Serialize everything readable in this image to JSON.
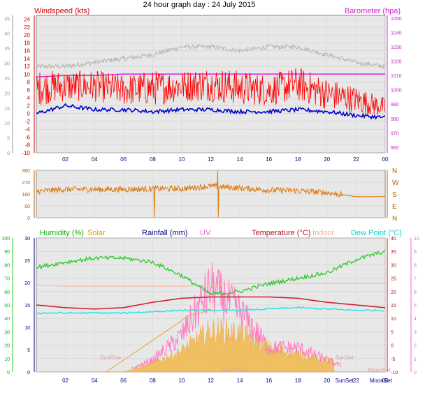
{
  "page_title": "24 hour graph day : 24 July 2015",
  "colors": {
    "wind": "#ff0000",
    "gust_low": "#0000cc",
    "gust_high": "#b4b4b4",
    "baro": "#dd22dd",
    "dir": "#dd7a10",
    "humidity": "#22cc22",
    "solar": "#f2b94a",
    "rain": "#000080",
    "uv": "#ff7ac0",
    "temp": "#cc2233",
    "indoor": "#f3c0a6",
    "dew": "#22e4e4",
    "grid": "#c8c8c8",
    "panel": "#e8e8e8"
  },
  "chart_data": [
    {
      "type": "line",
      "title": "24 hour graph day : 24 July 2015",
      "series_labels": {
        "left": "Windspeed (kts)",
        "right": "Barometer (hpa)"
      },
      "left_axis_kts": {
        "ticks": [
          -10,
          -8,
          -6,
          -4,
          -2,
          0,
          2,
          4,
          6,
          8,
          10,
          12,
          14,
          16,
          18,
          20,
          22,
          24
        ],
        "range": [
          -10,
          25
        ]
      },
      "outer_axis": {
        "ticks": [
          0,
          5,
          10,
          15,
          20,
          25,
          30,
          35,
          40,
          45
        ]
      },
      "right_axis_hpa": {
        "ticks": [
          960,
          970,
          980,
          990,
          1000,
          1010,
          1020,
          1030,
          1040,
          1050
        ],
        "range": [
          956,
          1052
        ]
      },
      "x_ticks": [
        "02",
        "04",
        "06",
        "08",
        "10",
        "12",
        "14",
        "16",
        "18",
        "20",
        "22",
        "00"
      ],
      "hours": [
        0,
        2,
        4,
        6,
        8,
        10,
        12,
        14,
        16,
        18,
        20,
        22,
        24
      ],
      "wind_avg_kts": [
        4,
        5,
        5,
        4,
        4,
        5,
        5,
        4,
        4,
        5,
        3,
        2,
        1
      ],
      "wind_gust_kts": [
        9,
        9,
        9,
        8,
        9,
        9,
        10,
        9,
        8,
        10,
        7,
        5,
        2
      ],
      "gust_low_kts": [
        0,
        2,
        1,
        1,
        0.5,
        1,
        1,
        0.5,
        0.5,
        1,
        0.5,
        -0.5,
        -1
      ],
      "gray_series_kts": [
        12,
        12,
        13,
        14,
        15,
        17,
        17,
        16,
        17,
        17,
        15,
        13,
        12
      ],
      "barometer_hpa": [
        1009,
        1010,
        1010,
        1011,
        1011,
        1011,
        1011,
        1011,
        1011,
        1011,
        1011,
        1011,
        1011
      ]
    },
    {
      "type": "line",
      "series_labels": {
        "compass": [
          "N",
          "W",
          "S",
          "E",
          "N"
        ]
      },
      "left_axis_deg": {
        "ticks": [
          0,
          90,
          180,
          270,
          360
        ],
        "range": [
          0,
          360
        ]
      },
      "hours": [
        0,
        2,
        4,
        6,
        8,
        10,
        12,
        14,
        16,
        18,
        20,
        22,
        24
      ],
      "wind_dir_deg": [
        200,
        215,
        215,
        215,
        220,
        220,
        240,
        225,
        210,
        205,
        190,
        160,
        160
      ]
    },
    {
      "type": "line",
      "labels": {
        "humidity": "Humidity (%)",
        "solar": "Solar",
        "rain": "Rainfall (mm)",
        "uv": "UV",
        "temp": "Temperature (°C)",
        "indoor": "Indoor",
        "dew": "Dew Point (°C)"
      },
      "humidity_axis": {
        "ticks": [
          0,
          10,
          20,
          30,
          40,
          50,
          60,
          70,
          80,
          90,
          100
        ],
        "range": [
          0,
          100
        ]
      },
      "rain_axis": {
        "ticks": [
          0,
          5,
          10,
          15,
          20,
          25,
          30
        ]
      },
      "temp_axis": {
        "ticks": [
          -10,
          -5,
          0,
          5,
          10,
          15,
          20,
          25,
          30,
          35,
          40
        ],
        "range": [
          -10,
          40
        ]
      },
      "uv_axis": {
        "ticks": [
          0,
          1,
          2,
          3,
          4,
          5,
          6,
          7,
          8,
          9,
          10
        ],
        "range": [
          0,
          10
        ]
      },
      "x_ticks": [
        "02",
        "04",
        "06",
        "08",
        "10",
        "12",
        "14",
        "16",
        "18",
        "20",
        "22",
        "00"
      ],
      "events": [
        "SunRise",
        "Moon Rise",
        "SunSet",
        "SunSet",
        "MoonSet",
        "MoonSet"
      ],
      "hours": [
        0,
        2,
        4,
        6,
        8,
        10,
        12,
        14,
        16,
        18,
        20,
        22,
        24
      ],
      "humidity_pct": [
        78,
        82,
        85,
        85,
        82,
        72,
        58,
        60,
        66,
        70,
        74,
        84,
        90
      ],
      "temp_c": [
        15,
        14,
        13.5,
        14,
        16,
        17.5,
        18,
        18,
        18,
        17.5,
        16,
        15,
        14
      ],
      "dew_c": [
        12,
        12,
        12,
        12,
        12.5,
        13,
        13,
        13,
        13.5,
        14,
        13.5,
        13,
        13
      ],
      "indoor_c": [
        22.5,
        22,
        22,
        22,
        22,
        22,
        22.5,
        23,
        23,
        23,
        23,
        23,
        23
      ],
      "solar_rel": [
        0,
        0,
        0,
        0,
        3,
        7,
        14,
        13,
        8,
        6,
        4,
        2,
        0
      ],
      "uv_index": [
        0,
        0,
        0,
        0,
        1,
        3,
        7,
        5,
        2,
        2,
        1,
        0,
        0
      ]
    }
  ]
}
